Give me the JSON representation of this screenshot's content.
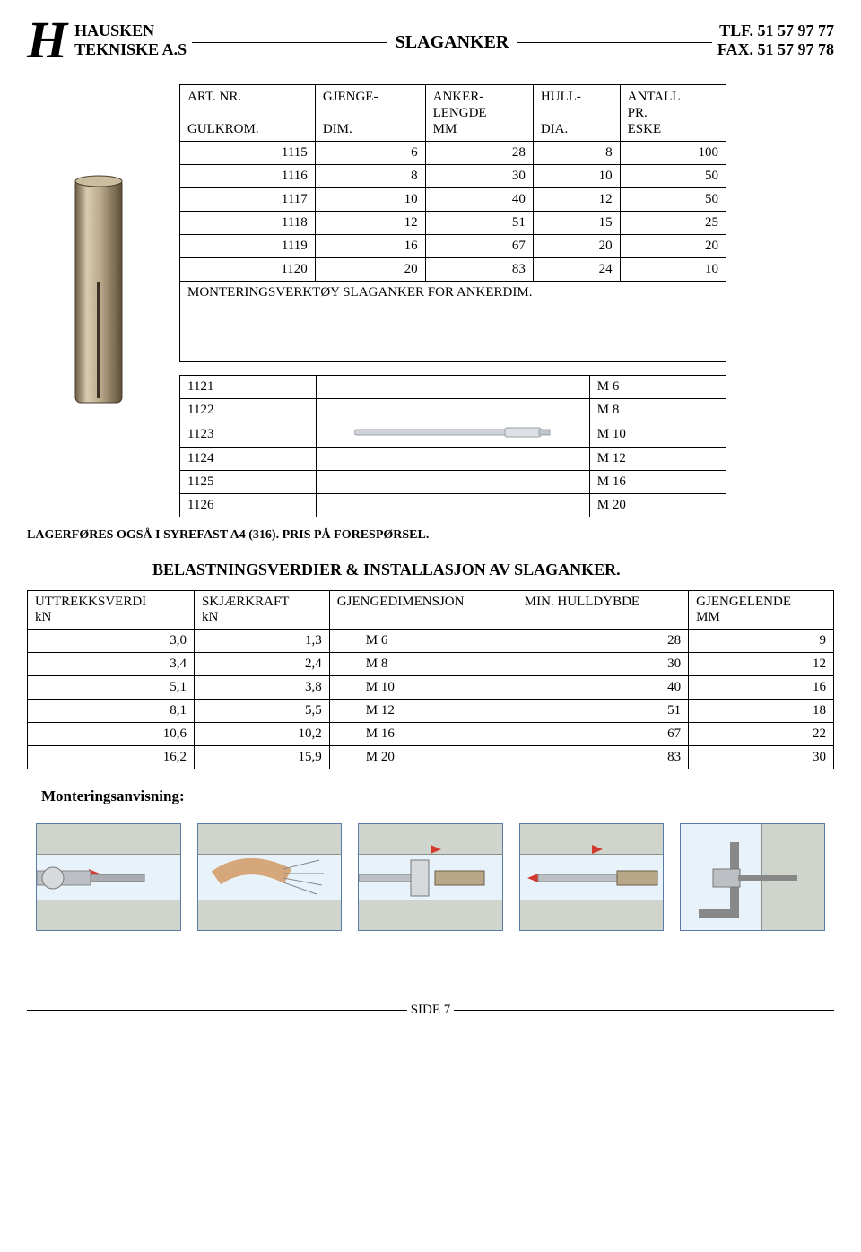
{
  "header": {
    "logo_letter": "H",
    "company_line1": "HAUSKEN",
    "company_line2": "TEKNISKE A.S",
    "title": "SLAGANKER",
    "contact_line1": "TLF. 51 57 97 77",
    "contact_line2": "FAX. 51 57 97 78"
  },
  "table1": {
    "headers": [
      {
        "l1": "ART. NR.",
        "l2": "GULKROM."
      },
      {
        "l1": "GJENGE-",
        "l2": "DIM."
      },
      {
        "l1": "ANKER-",
        "l2": "LENGDE",
        "l3": "MM"
      },
      {
        "l1": "HULL-",
        "l2": "",
        "l3": "DIA."
      },
      {
        "l1": "ANTALL",
        "l2": "PR.",
        "l3": "ESKE"
      }
    ],
    "rows": [
      [
        "1115",
        "6",
        "28",
        "8",
        "100"
      ],
      [
        "1116",
        "8",
        "30",
        "10",
        "50"
      ],
      [
        "1117",
        "10",
        "40",
        "12",
        "50"
      ],
      [
        "1118",
        "12",
        "51",
        "15",
        "25"
      ],
      [
        "1119",
        "16",
        "67",
        "20",
        "20"
      ],
      [
        "1120",
        "20",
        "83",
        "24",
        "10"
      ]
    ],
    "mont_label": "MONTERINGSVERKTØY SLAGANKER  FOR ANKERDIM."
  },
  "table2": {
    "rows": [
      [
        "1121",
        "M  6"
      ],
      [
        "1122",
        "M  8"
      ],
      [
        "1123",
        "M 10"
      ],
      [
        "1124",
        "M 12"
      ],
      [
        "1125",
        "M 16"
      ],
      [
        "1126",
        "M 20"
      ]
    ],
    "tool_row_index": 2
  },
  "lager_note": "LAGERFØRES OGSÅ I SYREFAST A4 (316).  PRIS PÅ FORESPØRSEL.",
  "section_title": "BELASTNINGSVERDIER & INSTALLASJON AV SLAGANKER.",
  "table3": {
    "headers": [
      {
        "l1": "UTTREKKSVERDI",
        "l2": "kN"
      },
      {
        "l1": "SKJÆRKRAFT",
        "l2": "kN"
      },
      {
        "l1": "GJENGEDIMENSJON",
        "l2": ""
      },
      {
        "l1": "MIN. HULLDYBDE",
        "l2": ""
      },
      {
        "l1": "GJENGELENDE",
        "l2": "MM"
      }
    ],
    "rows": [
      [
        "3,0",
        "1,3",
        "M  6",
        "28",
        "9"
      ],
      [
        "3,4",
        "2,4",
        "M  8",
        "30",
        "12"
      ],
      [
        "5,1",
        "3,8",
        "M 10",
        "40",
        "16"
      ],
      [
        "8,1",
        "5,5",
        "M 12",
        "51",
        "18"
      ],
      [
        "10,6",
        "10,2",
        "M 16",
        "67",
        "22"
      ],
      [
        "16,2",
        "15,9",
        "M 20",
        "83",
        "30"
      ]
    ]
  },
  "mont_heading": "Monteringsanvisning:",
  "footer": "SIDE 7",
  "colors": {
    "sky": "#e8f2fb",
    "sky_border": "#5a7aa8",
    "concrete_fill": "#cfd4cc",
    "concrete_border": "#8a9284",
    "metal": "#bcc0c4",
    "metal_border": "#888888",
    "red": "#d23a2f",
    "anchor_fill": "#b9a78a",
    "anchor_edge": "#6b5c44"
  }
}
